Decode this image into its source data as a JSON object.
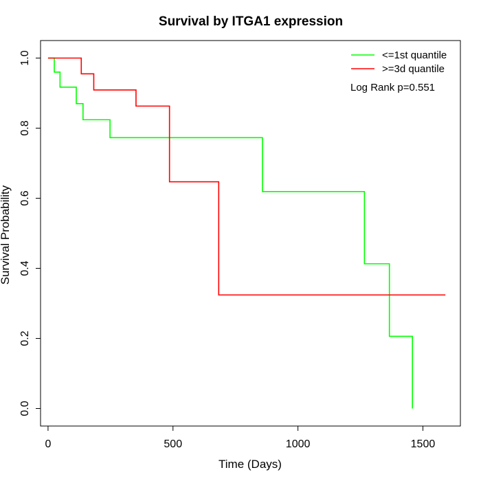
{
  "chart_data": {
    "type": "line",
    "title": "Survival by ITGA1 expression",
    "xlabel": "Time (Days)",
    "ylabel": "Survival Probability",
    "xlim": [
      -30,
      1650
    ],
    "ylim": [
      -0.05,
      1.05
    ],
    "xticks": [
      0,
      500,
      1000,
      1500
    ],
    "xtick_labels": [
      "0",
      "500",
      "1000",
      "1500"
    ],
    "yticks": [
      0,
      0.2,
      0.4,
      0.6,
      0.8,
      1.0
    ],
    "ytick_labels": [
      "0.0",
      "0.2",
      "0.4",
      "0.6",
      "0.8",
      "1.0"
    ],
    "grid": false,
    "legend_position": "top-right",
    "annotation": "Log Rank p=0.551",
    "series": [
      {
        "name": "<=1st quantile",
        "color": "#00ff00",
        "step": true,
        "x": [
          0,
          25,
          48,
          113,
          140,
          248,
          858,
          1266,
          1366,
          1458,
          1458
        ],
        "y": [
          1.0,
          0.96,
          0.917,
          0.87,
          0.824,
          0.773,
          0.619,
          0.413,
          0.206,
          0.206,
          0.0
        ]
      },
      {
        "name": ">=3d quantile",
        "color": "#ff0000",
        "step": true,
        "x": [
          0,
          133,
          183,
          352,
          486,
          683,
          1590
        ],
        "y": [
          1.0,
          0.955,
          0.909,
          0.863,
          0.647,
          0.324,
          0.324
        ]
      }
    ]
  }
}
